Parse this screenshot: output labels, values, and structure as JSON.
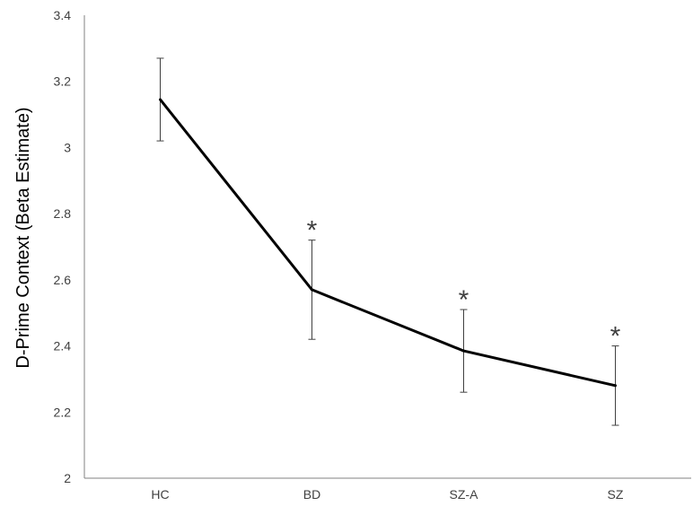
{
  "chart_data": {
    "type": "line",
    "title": "",
    "xlabel": "",
    "ylabel": "D-Prime Context (Beta Estimate)",
    "categories": [
      "HC",
      "BD",
      "SZ-A",
      "SZ"
    ],
    "series": [
      {
        "values": [
          3.145,
          2.57,
          2.385,
          2.28
        ],
        "error_low": [
          3.02,
          2.42,
          2.26,
          2.16
        ],
        "error_high": [
          3.27,
          2.72,
          2.51,
          2.4
        ],
        "significance": [
          "",
          "*",
          "*",
          "*"
        ]
      }
    ],
    "ylim": [
      2,
      3.4
    ],
    "yticks": [
      "2",
      "2.2",
      "2.4",
      "2.6",
      "2.8",
      "3",
      "3.2",
      "3.4"
    ],
    "grid": false,
    "legend": "none",
    "colors": {
      "line": "#000000",
      "error_bar": "#404040",
      "axis": "#808080",
      "text": "#404040"
    }
  }
}
